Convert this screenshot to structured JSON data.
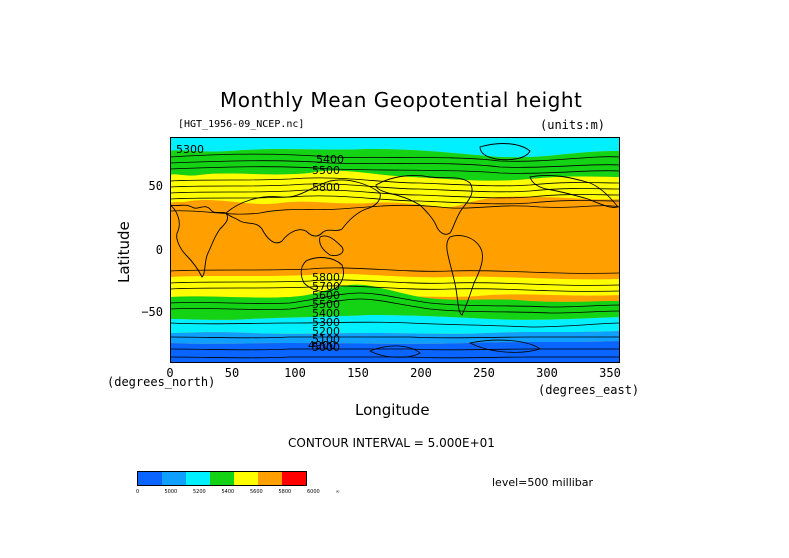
{
  "title": "Monthly Mean Geopotential height",
  "file_label": "[HGT_1956-09_NCEP.nc]",
  "units_label": "(units:m)",
  "y_axis": {
    "label": "Latitude",
    "unit": "(degrees_north)",
    "ticks": [
      "50",
      "0",
      "−50"
    ]
  },
  "x_axis": {
    "label": "Longitude",
    "unit": "(degrees_east)",
    "ticks": [
      "0",
      "50",
      "100",
      "150",
      "200",
      "250",
      "300",
      "350"
    ]
  },
  "contour_interval": "CONTOUR INTERVAL = 5.000E+01",
  "level": "level=500 millibar",
  "contour_labels": [
    "5300",
    "5400",
    "5500",
    "5800",
    "5800",
    "5700",
    "5600",
    "5500",
    "5400",
    "5300",
    "5200",
    "5100",
    "5000",
    "4900"
  ],
  "colorbar": {
    "colors": [
      "#0a64ff",
      "#0fa0ff",
      "#00f0ff",
      "#14d214",
      "#ffff00",
      "#ffa000",
      "#ff0000"
    ],
    "labels": [
      "0",
      "5000",
      "5200",
      "5400",
      "5600",
      "5800",
      "6000",
      "∞"
    ]
  },
  "map_colors": {
    "blue": "#0a64ff",
    "lightblue": "#0fa0ff",
    "cyan": "#00f0ff",
    "green": "#14d214",
    "yellow": "#ffff00",
    "orange": "#ffa000"
  }
}
